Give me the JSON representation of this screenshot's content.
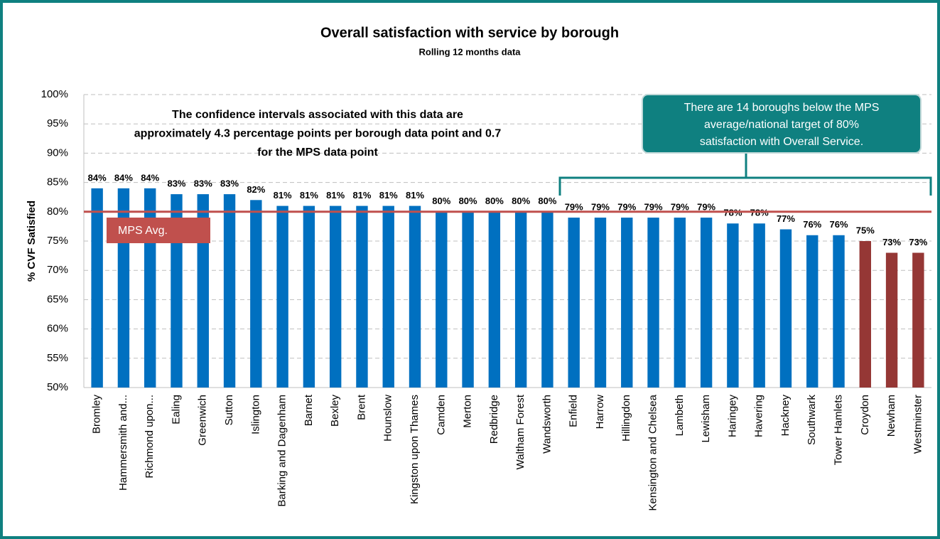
{
  "chart_data": {
    "type": "bar",
    "title": "Overall satisfaction with service by borough",
    "subtitle": "Rolling 12 months data",
    "y_label": "% CVF Satisfied",
    "categories": [
      "Bromley",
      "Hammersmith and...",
      "Richmond upon...",
      "Ealing",
      "Greenwich",
      "Sutton",
      "Islington",
      "Barking and Dagenham",
      "Barnet",
      "Bexley",
      "Brent",
      "Hounslow",
      "Kingston upon Thames",
      "Camden",
      "Merton",
      "Redbridge",
      "Waltham Forest",
      "Wandsworth",
      "Enfield",
      "Harrow",
      "Hillingdon",
      "Kensington and Chelsea",
      "Lambeth",
      "Lewisham",
      "Haringey",
      "Havering",
      "Hackney",
      "Southwark",
      "Tower Hamlets",
      "Croydon",
      "Newham",
      "Westminster"
    ],
    "values": [
      84,
      84,
      84,
      83,
      83,
      83,
      82,
      81,
      81,
      81,
      81,
      81,
      81,
      80,
      80,
      80,
      80,
      80,
      79,
      79,
      79,
      79,
      79,
      79,
      78,
      78,
      77,
      76,
      76,
      75,
      73,
      73
    ],
    "value_labels": [
      "84%",
      "84%",
      "84%",
      "83%",
      "83%",
      "83%",
      "82%",
      "81%",
      "81%",
      "81%",
      "81%",
      "81%",
      "81%",
      "80%",
      "80%",
      "80%",
      "80%",
      "80%",
      "79%",
      "79%",
      "79%",
      "79%",
      "79%",
      "79%",
      "78%",
      "78%",
      "77%",
      "76%",
      "76%",
      "75%",
      "73%",
      "73%"
    ],
    "colors": [
      "#0070c0",
      "#0070c0",
      "#0070c0",
      "#0070c0",
      "#0070c0",
      "#0070c0",
      "#0070c0",
      "#0070c0",
      "#0070c0",
      "#0070c0",
      "#0070c0",
      "#0070c0",
      "#0070c0",
      "#0070c0",
      "#0070c0",
      "#0070c0",
      "#0070c0",
      "#0070c0",
      "#0070c0",
      "#0070c0",
      "#0070c0",
      "#0070c0",
      "#0070c0",
      "#0070c0",
      "#0070c0",
      "#0070c0",
      "#0070c0",
      "#0070c0",
      "#0070c0",
      "#953735",
      "#953735",
      "#953735"
    ],
    "ylim": [
      50,
      100
    ],
    "yticks": [
      {
        "value": 50,
        "label": "50%"
      },
      {
        "value": 55,
        "label": "55%"
      },
      {
        "value": 60,
        "label": "60%"
      },
      {
        "value": 65,
        "label": "65%"
      },
      {
        "value": 70,
        "label": "70%"
      },
      {
        "value": 75,
        "label": "75%"
      },
      {
        "value": 80,
        "label": "80%"
      },
      {
        "value": 85,
        "label": "85%"
      },
      {
        "value": 90,
        "label": "90%"
      },
      {
        "value": 95,
        "label": "95%"
      },
      {
        "value": 100,
        "label": "100%"
      }
    ],
    "grid": true,
    "reference_line": {
      "name": "MPS Avg.",
      "value": 80,
      "color": "#c0504d"
    },
    "note": [
      "The confidence intervals associated with this data are",
      "approximately 4.3 percentage points per borough data point and 0.7",
      "for the MPS data point"
    ],
    "callout": [
      "There are 14 boroughs below the MPS",
      "average/national target of 80%",
      "satisfaction with Overall Service."
    ]
  }
}
